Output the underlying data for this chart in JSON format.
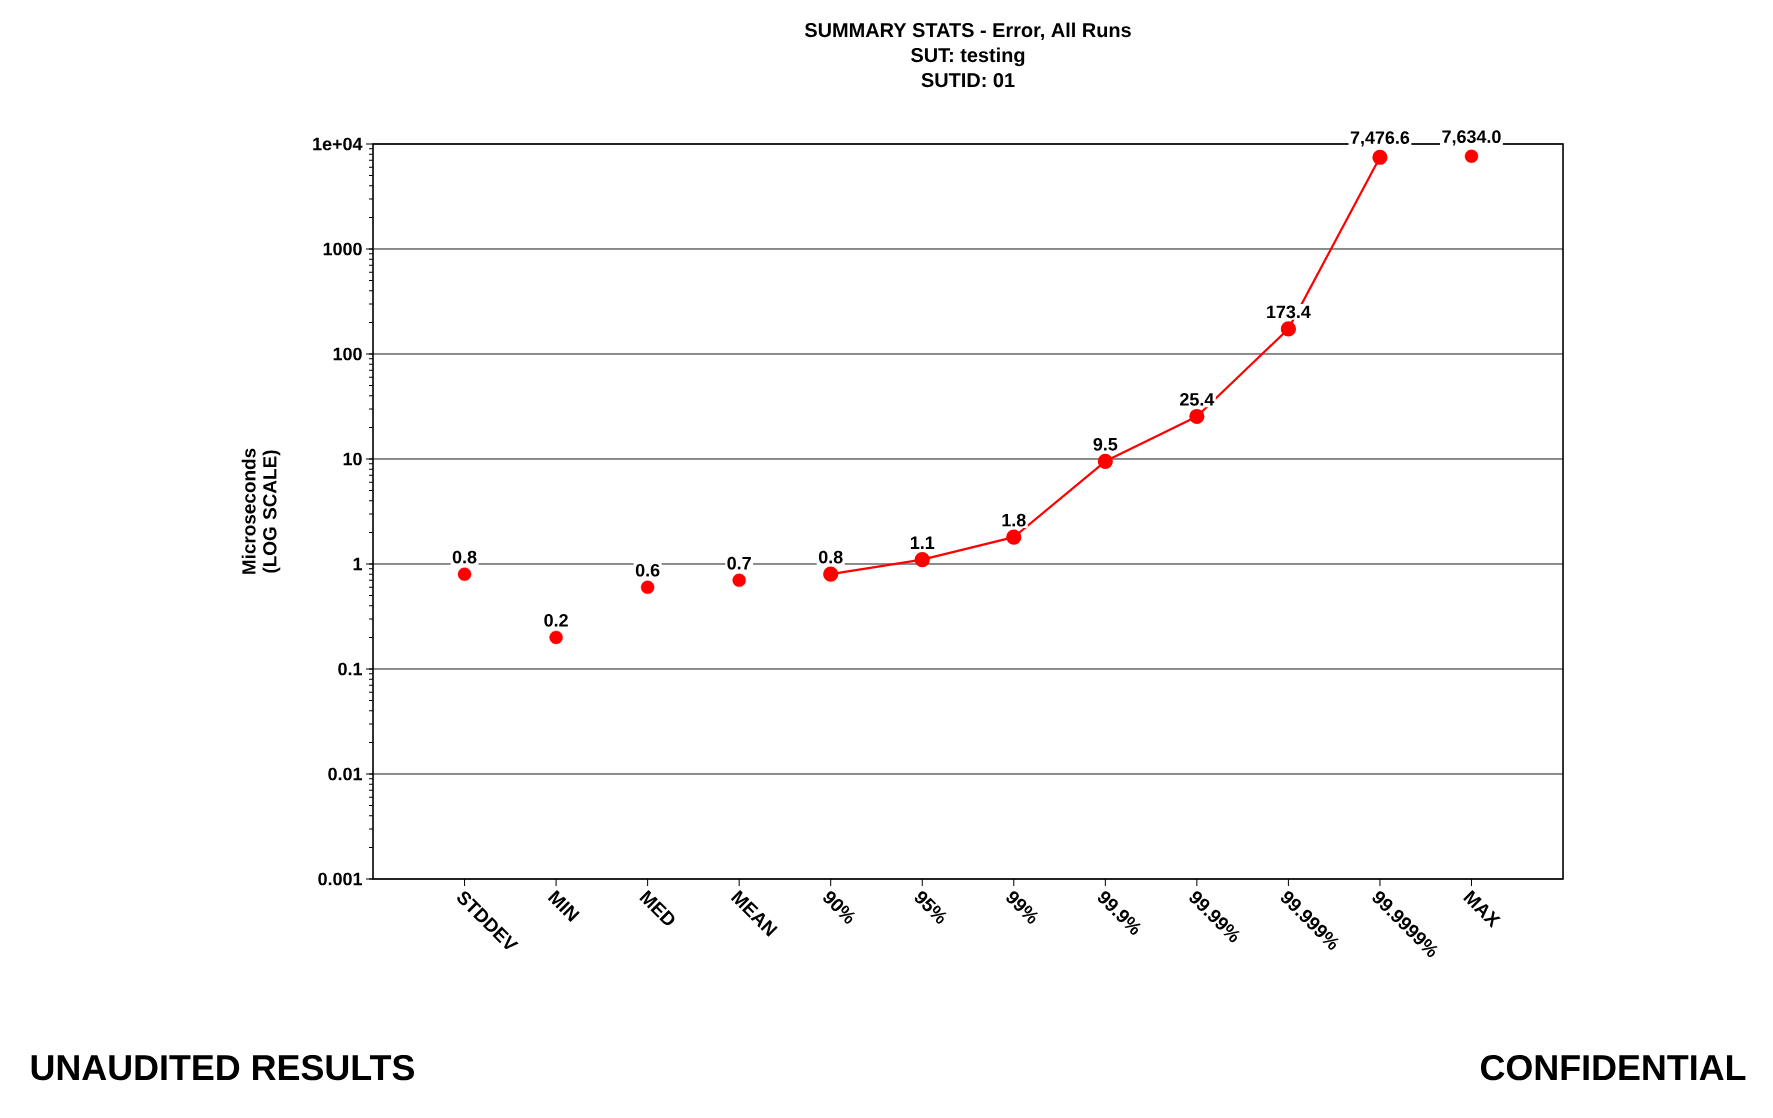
{
  "chart_data": {
    "type": "line",
    "title": "SUMMARY STATS - Error, All Runs",
    "subtitle": "SUT: testing",
    "ylabel": "Microseconds (LOG SCALE)",
    "categories": [
      "STDDEV",
      "MIN",
      "MED",
      "MEAN",
      "90%",
      "95%",
      "99%",
      "99.9%",
      "99.99%",
      "99.999%",
      "99.9999%",
      "MAX"
    ],
    "series": [
      {
        "type": "scatter",
        "color": "#ff0000",
        "values": [
          0.8,
          0.2,
          0.6,
          0.7,
          null,
          null,
          null,
          null,
          null,
          null,
          null,
          7634.0
        ],
        "value_labels": [
          "0.8",
          "0.2",
          "0.6",
          "0.7",
          null,
          null,
          null,
          null,
          null,
          null,
          null,
          "7,634.0"
        ]
      },
      {
        "color": "#ff0000",
        "values": [
          null,
          null,
          null,
          null,
          0.8,
          1.1,
          1.8,
          9.5,
          25.4,
          173.4,
          7476.6,
          null
        ],
        "value_labels": [
          null,
          null,
          null,
          null,
          "0.8",
          "1.1",
          "1.8",
          "9.5",
          "25.4",
          "173.4",
          "7,476.6",
          null
        ]
      }
    ],
    "log": "y",
    "ylim": [
      0.001,
      10000
    ],
    "yticks": [
      {
        "value": 0.001,
        "label": "0.001"
      },
      {
        "value": 0.01,
        "label": "0.01"
      },
      {
        "value": 0.1,
        "label": "0.1"
      },
      {
        "value": 1,
        "label": "1"
      },
      {
        "value": 10,
        "label": "10"
      },
      {
        "value": 100,
        "label": "100"
      },
      {
        "value": 1000,
        "label": "1000"
      },
      {
        "value": 10000,
        "label": "1e+04"
      }
    ],
    "grid": "y",
    "marker": "circle",
    "annotations": [
      "SUTID: 01",
      "UNAUDITED RESULTS",
      "CONFIDENTIAL"
    ]
  }
}
